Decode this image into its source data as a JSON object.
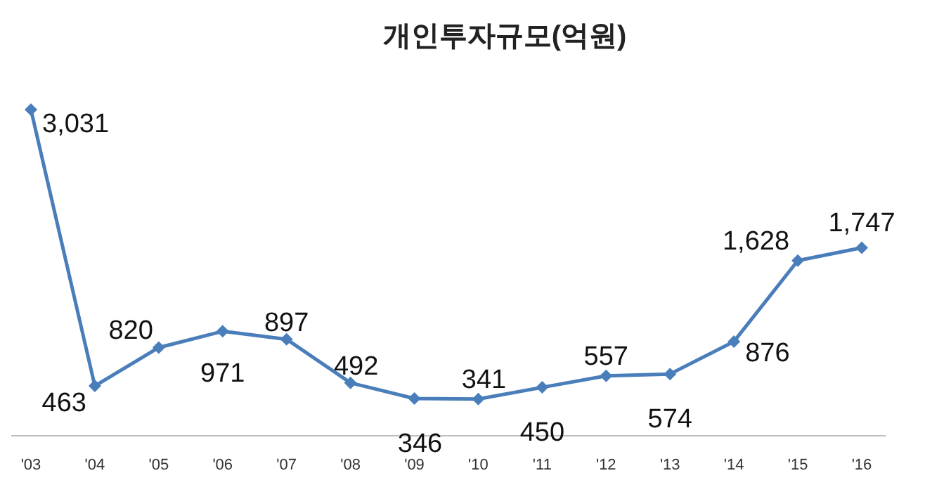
{
  "chart_data": {
    "type": "line",
    "title": "개인투자규모(억원)",
    "categories": [
      "'03",
      "'04",
      "'05",
      "'06",
      "'07",
      "'08",
      "'09",
      "'10",
      "'11",
      "'12",
      "'13",
      "'14",
      "'15",
      "'16"
    ],
    "series": [
      {
        "color": "#4a7ebb",
        "values": [
          3031,
          463,
          820,
          971,
          897,
          492,
          346,
          341,
          450,
          557,
          574,
          876,
          1628,
          1747
        ],
        "value_labels": [
          "3,031",
          "463",
          "820",
          "971",
          "897",
          "492",
          "346",
          "341",
          "450",
          "557",
          "574",
          "876",
          "1,628",
          "1,747"
        ]
      }
    ],
    "marker": "diamond",
    "line_style": "solid"
  }
}
